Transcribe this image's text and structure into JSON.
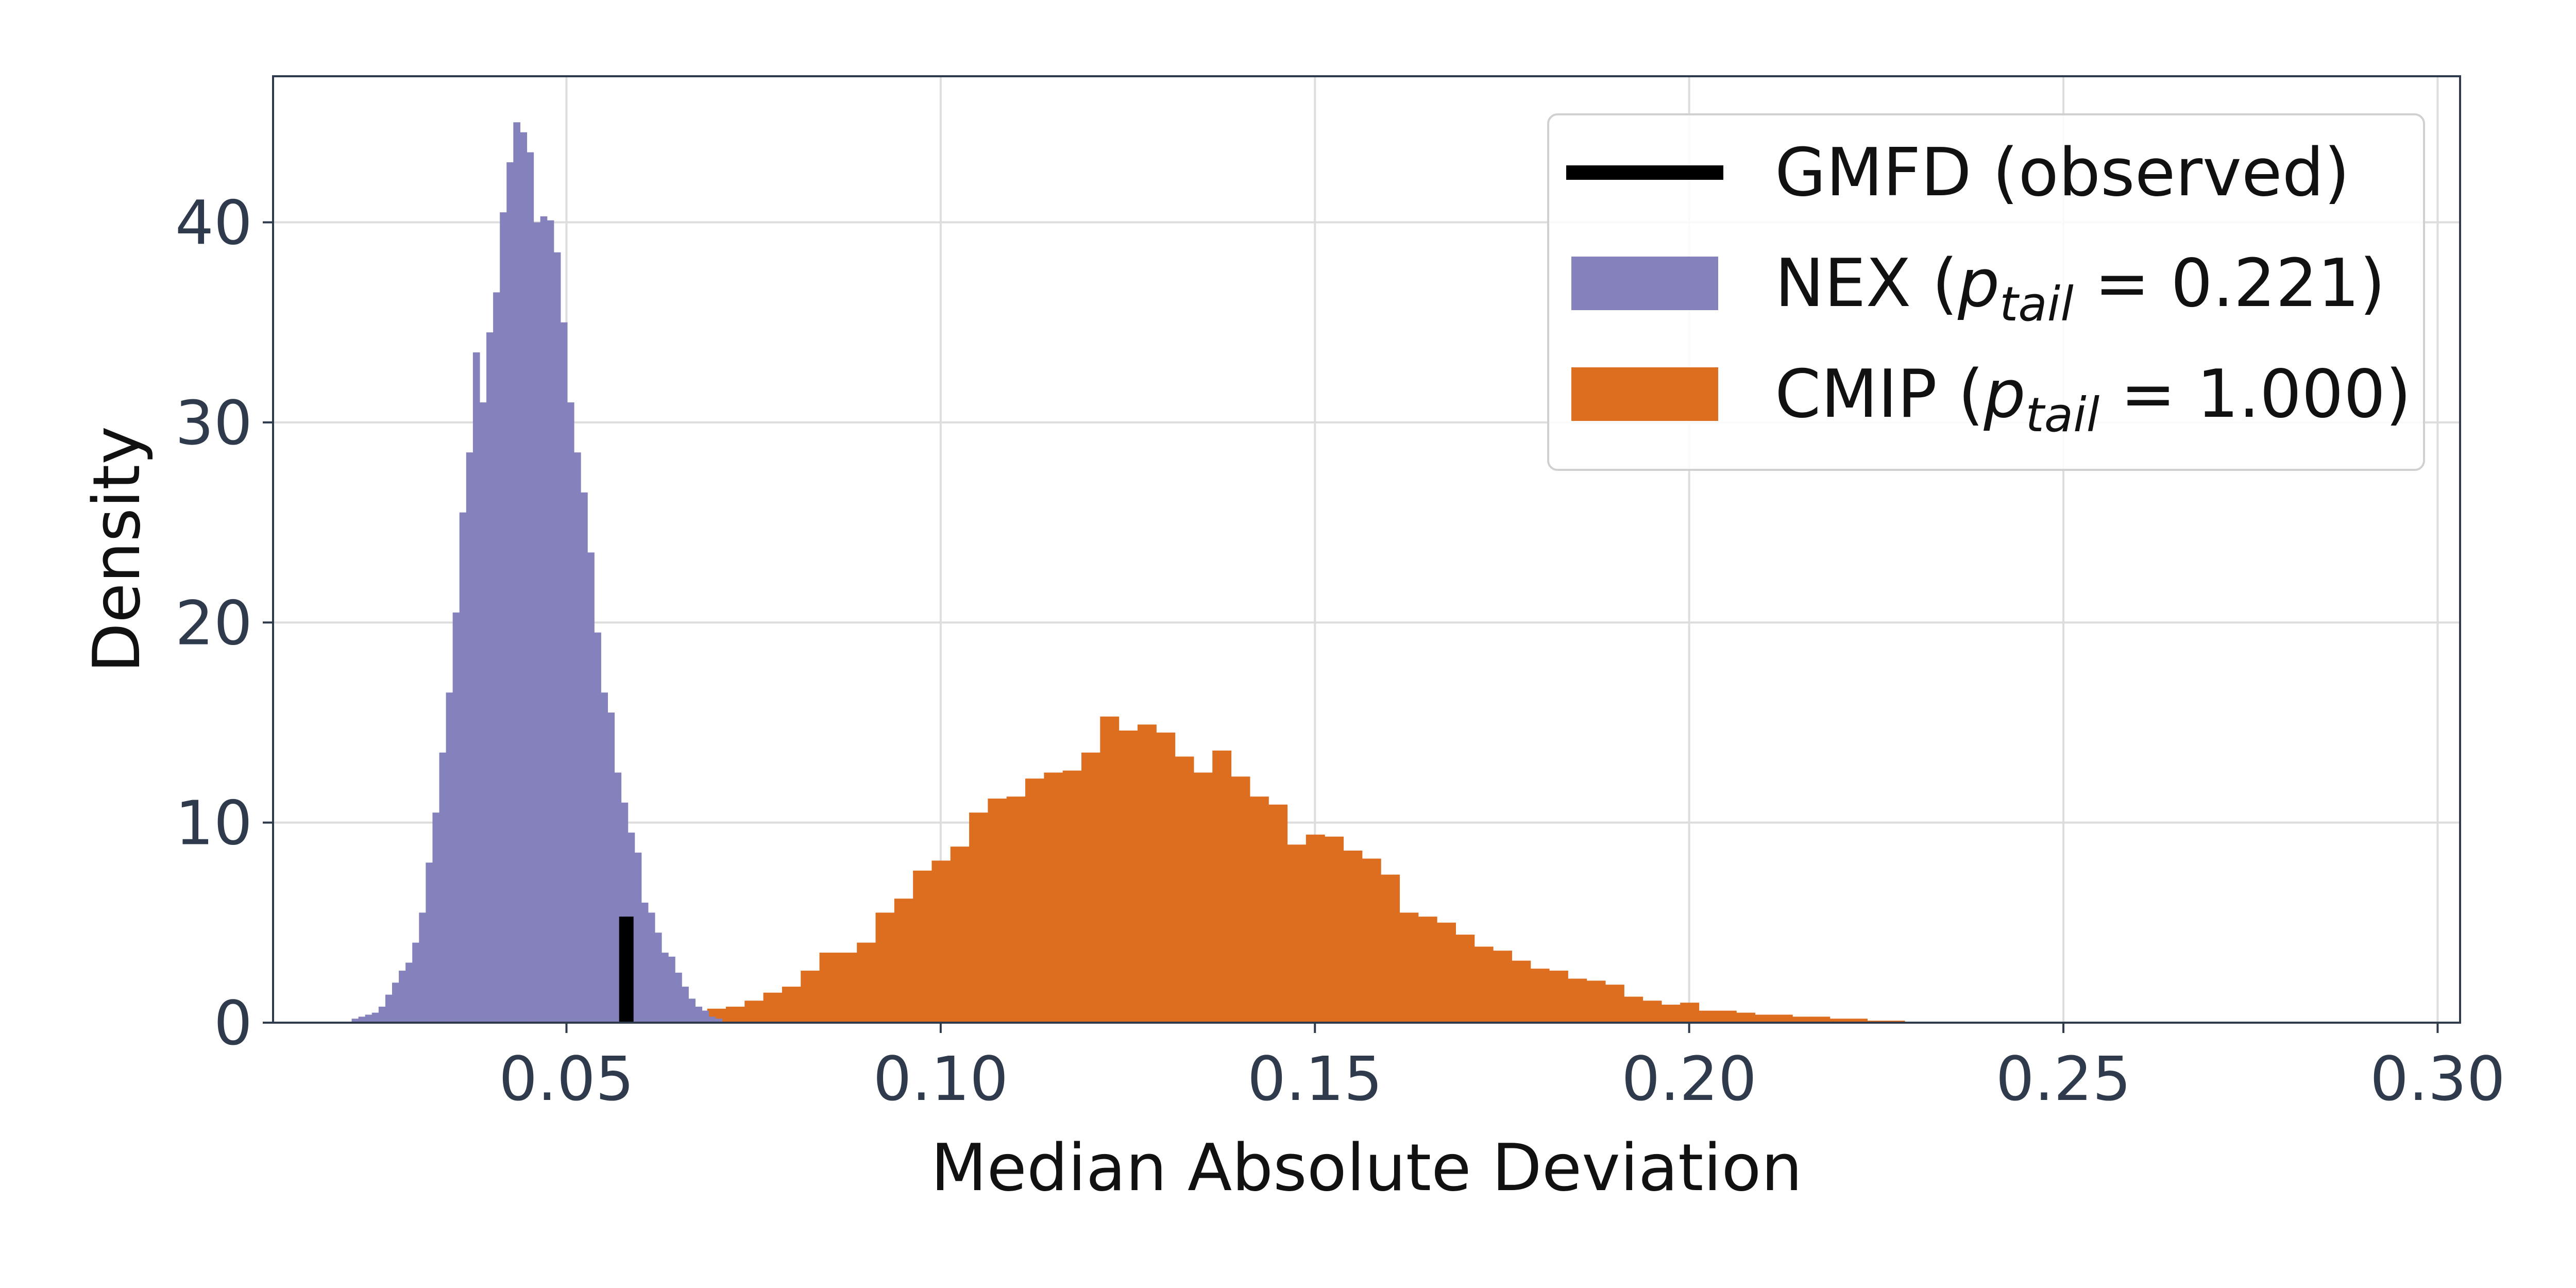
{
  "chart_data": {
    "type": "bar",
    "xlabel": "Median Absolute Deviation",
    "ylabel": "Density",
    "xlim": [
      0.0108,
      0.303
    ],
    "ylim": [
      0,
      47.3
    ],
    "x_ticks": [
      "0.05",
      "0.10",
      "0.15",
      "0.20",
      "0.25",
      "0.30"
    ],
    "x_tick_values": [
      0.05,
      0.1,
      0.15,
      0.2,
      0.25,
      0.3
    ],
    "y_ticks": [
      "0",
      "10",
      "20",
      "30",
      "40"
    ],
    "y_tick_values": [
      0,
      10,
      20,
      30,
      40
    ],
    "grid": true,
    "legend_position": "top-right",
    "colors": {
      "nex": "#8581bc",
      "cmip": "#dd6e1f",
      "observed": "#000000",
      "grid": "#dddddd",
      "axes": "#2f3b4c"
    },
    "legend": [
      {
        "kind": "line",
        "label": "GMFD (observed)"
      },
      {
        "kind": "patch",
        "series": "nex",
        "prefix": "NEX (",
        "p": "p",
        "sub": "tail",
        "suffix": " = 0.221)"
      },
      {
        "kind": "patch",
        "series": "cmip",
        "prefix": "CMIP (",
        "p": "p",
        "sub": "tail",
        "suffix": " = 1.000)"
      }
    ],
    "observed": {
      "label": "GMFD (observed)",
      "x": 0.058,
      "y": 5.3
    },
    "series": [
      {
        "key": "cmip",
        "label": "CMIP (p_tail = 1.000)",
        "bin_start": 0.0588,
        "bin_width": 0.0025,
        "values": [
          0.1,
          0.2,
          0.3,
          0.6,
          0.7,
          0.8,
          1.1,
          1.5,
          1.8,
          2.6,
          3.5,
          3.5,
          4.0,
          5.5,
          6.2,
          7.6,
          8.1,
          8.8,
          10.5,
          11.2,
          11.3,
          12.2,
          12.5,
          12.6,
          13.5,
          15.3,
          14.6,
          14.9,
          14.5,
          13.3,
          12.5,
          13.6,
          12.3,
          11.3,
          10.9,
          8.9,
          9.4,
          9.3,
          8.6,
          8.2,
          7.4,
          5.5,
          5.3,
          5.0,
          4.4,
          3.8,
          3.6,
          3.1,
          2.7,
          2.6,
          2.2,
          2.1,
          1.9,
          1.3,
          1.1,
          0.9,
          1.0,
          0.6,
          0.6,
          0.5,
          0.4,
          0.4,
          0.3,
          0.3,
          0.2,
          0.2,
          0.1,
          0.1,
          0.05,
          0.05,
          0.05,
          0.05,
          0.05,
          0.05
        ]
      },
      {
        "key": "nex",
        "label": "NEX (p_tail = 0.221)",
        "bin_start": 0.0213,
        "bin_width": 0.0009,
        "values": [
          0.2,
          0.3,
          0.4,
          0.5,
          0.8,
          1.4,
          2.0,
          2.6,
          3.0,
          4.0,
          5.5,
          8.0,
          10.5,
          13.5,
          16.5,
          20.5,
          25.5,
          28.5,
          33.5,
          31.0,
          34.5,
          36.5,
          40.5,
          43.0,
          45.0,
          44.5,
          43.5,
          40.0,
          40.3,
          40.1,
          38.5,
          35.0,
          31.0,
          28.5,
          26.5,
          23.5,
          19.5,
          16.5,
          15.5,
          12.5,
          11.0,
          9.5,
          8.5,
          6.0,
          5.5,
          4.5,
          3.5,
          3.3,
          2.5,
          1.8,
          1.2,
          0.8,
          0.6,
          0.3,
          0.2
        ]
      }
    ]
  }
}
